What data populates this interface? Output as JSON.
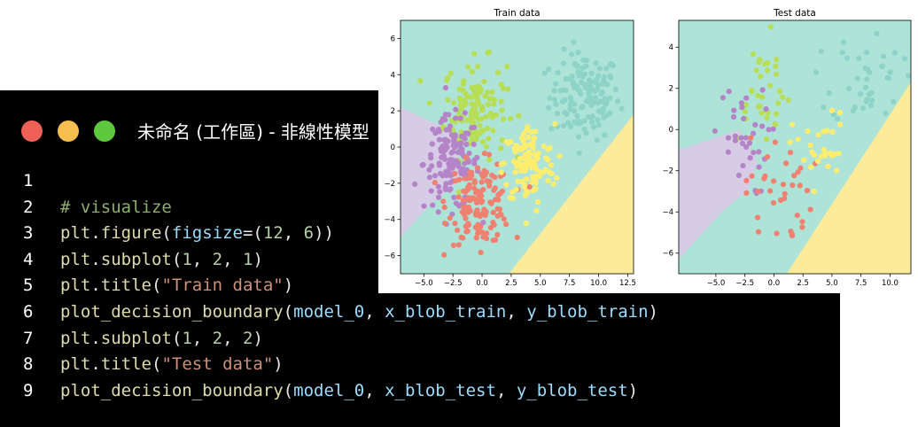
{
  "window": {
    "title": "未命名 (工作區) - 非線性模型"
  },
  "code_lines": [
    {
      "n": "1",
      "tokens": []
    },
    {
      "n": "2",
      "tokens": [
        {
          "t": "# visualize",
          "k": "cm"
        }
      ]
    },
    {
      "n": "3",
      "tokens": [
        {
          "t": "plt",
          "k": "fn"
        },
        {
          "t": ".",
          "k": "p"
        },
        {
          "t": "figure",
          "k": "fn"
        },
        {
          "t": "(",
          "k": "p"
        },
        {
          "t": "figsize",
          "k": "var"
        },
        {
          "t": "=(",
          "k": "p"
        },
        {
          "t": "12",
          "k": "num"
        },
        {
          "t": ", ",
          "k": "p"
        },
        {
          "t": "6",
          "k": "num"
        },
        {
          "t": "))",
          "k": "p"
        }
      ]
    },
    {
      "n": "4",
      "tokens": [
        {
          "t": "plt",
          "k": "fn"
        },
        {
          "t": ".",
          "k": "p"
        },
        {
          "t": "subplot",
          "k": "fn"
        },
        {
          "t": "(",
          "k": "p"
        },
        {
          "t": "1",
          "k": "num"
        },
        {
          "t": ", ",
          "k": "p"
        },
        {
          "t": "2",
          "k": "num"
        },
        {
          "t": ", ",
          "k": "p"
        },
        {
          "t": "1",
          "k": "num"
        },
        {
          "t": ")",
          "k": "p"
        }
      ]
    },
    {
      "n": "5",
      "tokens": [
        {
          "t": "plt",
          "k": "fn"
        },
        {
          "t": ".",
          "k": "p"
        },
        {
          "t": "title",
          "k": "fn"
        },
        {
          "t": "(",
          "k": "p"
        },
        {
          "t": "\"Train data\"",
          "k": "str"
        },
        {
          "t": ")",
          "k": "p"
        }
      ]
    },
    {
      "n": "6",
      "tokens": [
        {
          "t": "plot_decision_boundary",
          "k": "fn"
        },
        {
          "t": "(",
          "k": "p"
        },
        {
          "t": "model_0",
          "k": "var"
        },
        {
          "t": ", ",
          "k": "p"
        },
        {
          "t": "x_blob_train",
          "k": "var"
        },
        {
          "t": ", ",
          "k": "p"
        },
        {
          "t": "y_blob_train",
          "k": "var"
        },
        {
          "t": ")",
          "k": "p"
        }
      ]
    },
    {
      "n": "7",
      "tokens": [
        {
          "t": "plt",
          "k": "fn"
        },
        {
          "t": ".",
          "k": "p"
        },
        {
          "t": "subplot",
          "k": "fn"
        },
        {
          "t": "(",
          "k": "p"
        },
        {
          "t": "1",
          "k": "num"
        },
        {
          "t": ", ",
          "k": "p"
        },
        {
          "t": "2",
          "k": "num"
        },
        {
          "t": ", ",
          "k": "p"
        },
        {
          "t": "2",
          "k": "num"
        },
        {
          "t": ")",
          "k": "p"
        }
      ]
    },
    {
      "n": "8",
      "tokens": [
        {
          "t": "plt",
          "k": "fn"
        },
        {
          "t": ".",
          "k": "p"
        },
        {
          "t": "title",
          "k": "fn"
        },
        {
          "t": "(",
          "k": "p"
        },
        {
          "t": "\"Test data\"",
          "k": "str"
        },
        {
          "t": ")",
          "k": "p"
        }
      ]
    },
    {
      "n": "9",
      "tokens": [
        {
          "t": "plot_decision_boundary",
          "k": "fn"
        },
        {
          "t": "(",
          "k": "p"
        },
        {
          "t": "model_0",
          "k": "var"
        },
        {
          "t": ", ",
          "k": "p"
        },
        {
          "t": "x_blob_test",
          "k": "var"
        },
        {
          "t": ", ",
          "k": "p"
        },
        {
          "t": "y_blob_test",
          "k": "var"
        },
        {
          "t": ")",
          "k": "p"
        }
      ]
    }
  ],
  "colors": {
    "editor_bg": "#000000",
    "region_teal": "#aee3d8",
    "region_purple": "#d6cce6",
    "region_yellow": "#fbeb9a",
    "class_teal": "#8dd3c7",
    "class_green": "#b7de55",
    "class_purple": "#b584c8",
    "class_salmon": "#f08070",
    "class_yellow": "#ffed6f"
  },
  "chart_data": [
    {
      "type": "scatter",
      "title": "Train data",
      "xlim": [
        -7,
        13
      ],
      "ylim": [
        -7,
        7
      ],
      "xticks": [
        "−5.0",
        "−2.5",
        "0.0",
        "2.5",
        "5.0",
        "7.5",
        "10.0",
        "12.5"
      ],
      "yticks": [
        "−6",
        "−4",
        "−2",
        "0",
        "2",
        "4",
        "6"
      ],
      "decision_regions": [
        {
          "class": "teal",
          "color": "#aee3d8",
          "description": "background region"
        },
        {
          "class": "purple",
          "polygon": [
            [
              -7,
              -5
            ],
            [
              -4.5,
              -3.2
            ],
            [
              -2.4,
              -2.1
            ],
            [
              -1.5,
              -1.4
            ],
            [
              -3,
              1
            ],
            [
              -7,
              2.2
            ]
          ]
        },
        {
          "class": "yellow",
          "polygon": [
            [
              2.3,
              -7
            ],
            [
              13,
              1.8
            ],
            [
              13,
              -7
            ]
          ]
        }
      ],
      "series": [
        {
          "color": "#8dd3c7",
          "center": [
            8.8,
            2.8
          ],
          "spread": [
            2.0,
            1.6
          ],
          "n": 140
        },
        {
          "color": "#b7de55",
          "center": [
            -0.6,
            2.1
          ],
          "spread": [
            1.8,
            1.8
          ],
          "n": 140
        },
        {
          "color": "#b584c8",
          "center": [
            -2.6,
            -0.9
          ],
          "spread": [
            1.6,
            1.7
          ],
          "n": 140
        },
        {
          "color": "#f08070",
          "center": [
            -0.2,
            -3.1
          ],
          "spread": [
            1.8,
            1.5
          ],
          "n": 140
        },
        {
          "color": "#ffed6f",
          "center": [
            4.0,
            -1.0
          ],
          "spread": [
            1.5,
            1.5
          ],
          "n": 120
        }
      ]
    },
    {
      "type": "scatter",
      "title": "Test data",
      "xlim": [
        -8.2,
        11.8
      ],
      "ylim": [
        -7,
        5.3
      ],
      "xticks": [
        "−5.0",
        "−2.5",
        "0.0",
        "2.5",
        "5.0",
        "7.5",
        "10.0"
      ],
      "yticks": [
        "−6",
        "−4",
        "−2",
        "0",
        "2",
        "4"
      ],
      "decision_regions": [
        {
          "class": "teal",
          "color": "#aee3d8",
          "description": "background region"
        },
        {
          "class": "purple",
          "polygon": [
            [
              -8.2,
              -6.3
            ],
            [
              -4.5,
              -4
            ],
            [
              -2.2,
              -2.9
            ],
            [
              -1.4,
              -1.5
            ],
            [
              -3,
              0
            ],
            [
              -8.2,
              -1
            ]
          ]
        },
        {
          "class": "yellow",
          "polygon": [
            [
              1.1,
              -7
            ],
            [
              11.8,
              2.3
            ],
            [
              11.8,
              -7
            ]
          ]
        }
      ],
      "series": [
        {
          "color": "#8dd3c7",
          "center": [
            8.0,
            2.5
          ],
          "spread": [
            2.0,
            1.6
          ],
          "n": 40
        },
        {
          "color": "#b7de55",
          "center": [
            -1.1,
            2.0
          ],
          "spread": [
            1.7,
            1.7
          ],
          "n": 35
        },
        {
          "color": "#b584c8",
          "center": [
            -2.9,
            -0.5
          ],
          "spread": [
            1.6,
            1.8
          ],
          "n": 35
        },
        {
          "color": "#f08070",
          "center": [
            0.4,
            -3.0
          ],
          "spread": [
            1.9,
            1.8
          ],
          "n": 35
        },
        {
          "color": "#ffed6f",
          "center": [
            4.0,
            -1.0
          ],
          "spread": [
            1.6,
            1.2
          ],
          "n": 30
        }
      ]
    }
  ]
}
